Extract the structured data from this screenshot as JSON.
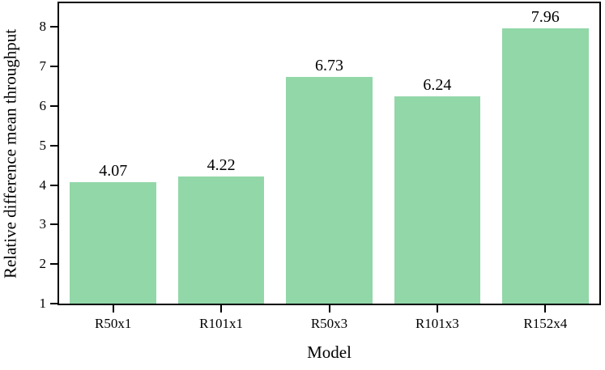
{
  "chart_data": {
    "type": "bar",
    "title": "",
    "xlabel": "Model",
    "ylabel": "Relative difference mean throughput",
    "categories": [
      "R50x1",
      "R101x1",
      "R50x3",
      "R101x3",
      "R152x4"
    ],
    "values": [
      4.07,
      4.22,
      6.73,
      6.24,
      7.96
    ],
    "value_labels": [
      "4.07",
      "4.22",
      "6.73",
      "6.24",
      "7.96"
    ],
    "yticks": [
      1,
      2,
      3,
      4,
      5,
      6,
      7,
      8
    ],
    "ylim": [
      1,
      8.6
    ],
    "bar_width_fraction": 0.8,
    "bar_color": "#92d7a8",
    "axis_color": "#000000",
    "text_color": "#000000",
    "grid": false,
    "legend_position": "none"
  }
}
